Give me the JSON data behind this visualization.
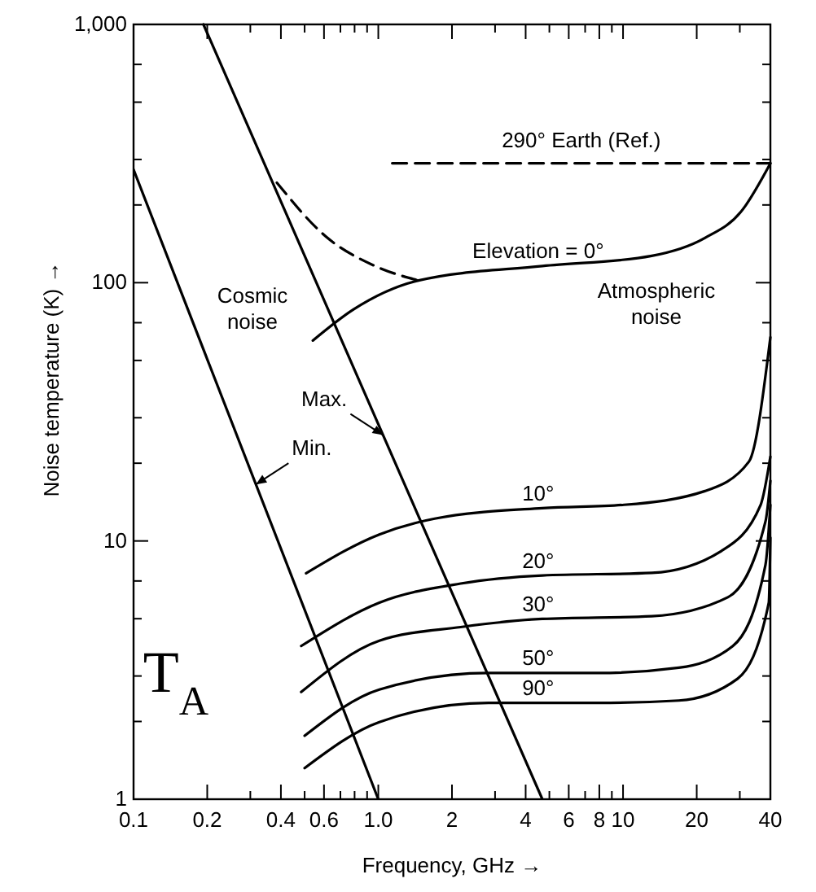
{
  "chart_data": {
    "type": "line",
    "xlabel": "Frequency, GHz →",
    "ylabel": "Noise temperature (K) →",
    "log": "xy",
    "grid": false,
    "xlim": [
      0.1,
      40
    ],
    "ylim": [
      1,
      1000
    ],
    "xticks": [
      0.1,
      0.2,
      {
        "value": 0.3,
        "label": null
      },
      0.4,
      {
        "value": 0.5,
        "label": null
      },
      0.6,
      {
        "value": 0.7,
        "label": null
      },
      {
        "value": 0.8,
        "label": null
      },
      {
        "value": 0.9,
        "label": null
      },
      {
        "value": 1,
        "label": "1.0"
      },
      2,
      {
        "value": 3,
        "label": null
      },
      4,
      {
        "value": 5,
        "label": null
      },
      6,
      {
        "value": 7,
        "label": null
      },
      8,
      {
        "value": 9,
        "label": null
      },
      10,
      20,
      {
        "value": 30,
        "label": null
      },
      40
    ],
    "yticks": [
      1,
      {
        "value": 2,
        "label": null
      },
      {
        "value": 3,
        "label": null
      },
      {
        "value": 5,
        "label": null
      },
      {
        "value": 7,
        "label": null
      },
      10,
      {
        "value": 20,
        "label": null
      },
      {
        "value": 30,
        "label": null
      },
      {
        "value": 50,
        "label": null
      },
      {
        "value": 70,
        "label": null
      },
      100,
      {
        "value": 200,
        "label": null
      },
      {
        "value": 300,
        "label": null
      },
      {
        "value": 500,
        "label": null
      },
      {
        "value": 700,
        "label": null
      },
      {
        "value": 1000,
        "label": "1,000"
      }
    ],
    "series": [
      {
        "name": "Min.",
        "color": "#000000",
        "line_style": "solid",
        "x": [
          0.1,
          1.0
        ],
        "values": [
          274,
          1
        ]
      },
      {
        "name": "Max.",
        "color": "#000000",
        "line_style": "solid",
        "x": [
          0.193,
          4.68
        ],
        "values": [
          1000,
          1
        ]
      },
      {
        "name": "290° Earth (Ref.)",
        "color": "#000000",
        "line_style": "dashed",
        "x": [
          1.14,
          40
        ],
        "values": [
          290,
          290
        ]
      },
      {
        "color": "#000000",
        "line_style": "dashed",
        "x": [
          0.385,
          0.61,
          0.97,
          1.46
        ],
        "values": [
          244,
          151,
          116,
          102
        ]
      },
      {
        "name": "Elevation = 0°",
        "color": "#000000",
        "line_style": "solid",
        "x": [
          0.54,
          0.79,
          1.46,
          4.68,
          13.1,
          21.6,
          30.3,
          40
        ],
        "values": [
          59.7,
          78.7,
          102,
          116,
          127,
          149,
          188,
          290
        ]
      },
      {
        "name": "10°",
        "color": "#000000",
        "line_style": "solid",
        "x": [
          0.507,
          1.01,
          1.7,
          4.68,
          10.1,
          21.6,
          32.7,
          40
        ],
        "values": [
          7.5,
          10.6,
          12.2,
          13.4,
          13.8,
          15.6,
          20.3,
          61.5
        ]
      },
      {
        "name": "20°",
        "color": "#000000",
        "line_style": "solid",
        "x": [
          0.484,
          1.01,
          2.17,
          4.68,
          13.1,
          25.2,
          36.5,
          40
        ],
        "values": [
          3.92,
          5.77,
          6.84,
          7.35,
          7.52,
          9.14,
          13.8,
          21.2
        ]
      },
      {
        "name": "30°",
        "color": "#000000",
        "line_style": "solid",
        "x": [
          0.484,
          1.01,
          2.17,
          4.68,
          13.1,
          26.8,
          38.2,
          40
        ],
        "values": [
          2.6,
          4.11,
          4.64,
          4.99,
          5.11,
          6.05,
          11.9,
          17.1
        ]
      },
      {
        "name": "50°",
        "color": "#000000",
        "line_style": "solid",
        "x": [
          0.5,
          1.01,
          2.82,
          7.87,
          16.9,
          28.1,
          38.2,
          40
        ],
        "values": [
          1.76,
          2.66,
          3.08,
          3.08,
          3.23,
          3.92,
          8.09,
          13.8
        ]
      },
      {
        "name": "90°",
        "color": "#000000",
        "line_style": "solid",
        "x": [
          0.5,
          1.01,
          2.82,
          7.87,
          16.9,
          29.4,
          39.4,
          40
        ],
        "values": [
          1.32,
          1.99,
          2.36,
          2.36,
          2.41,
          2.93,
          5.77,
          10.3
        ]
      }
    ],
    "annotations": [
      "Cosmic\nnoise",
      "Atmospheric\nnoise",
      "T$_{A}$"
    ]
  }
}
